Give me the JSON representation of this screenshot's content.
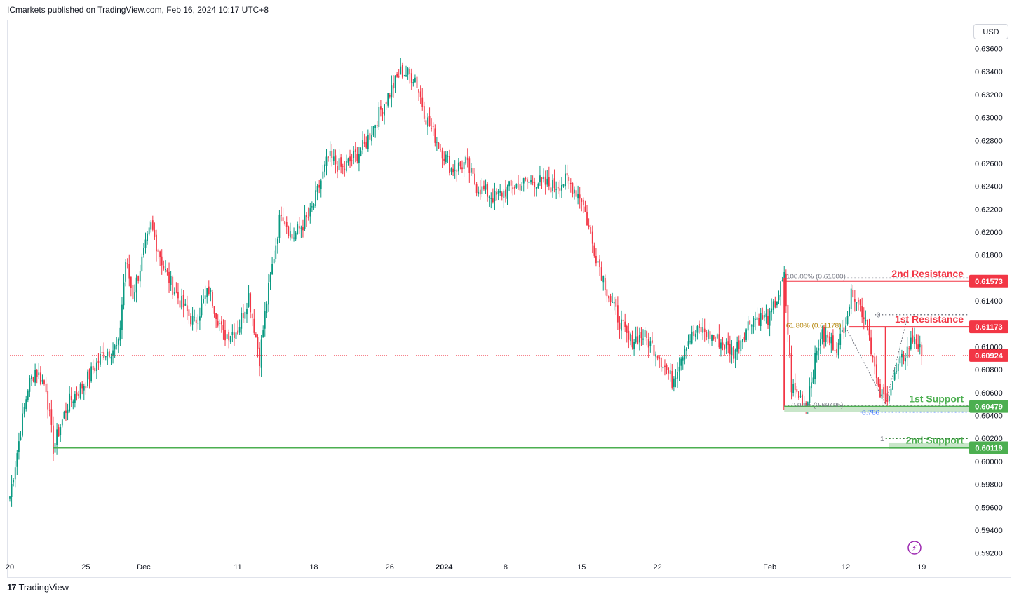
{
  "header": {
    "attribution": "ICmarkets published on TradingView.com, Feb 16, 2024 10:17 UTC+8"
  },
  "toolbar": {
    "currency_label": "USD"
  },
  "footer": {
    "brand_label": "TradingView",
    "logo_icon": "tradingview-logo-icon"
  },
  "colors": {
    "up": "#089981",
    "down": "#f23645",
    "resistance": "#f23645",
    "support": "#4caf50",
    "support_zone": "#c8e6c9",
    "current_price": "#f23645",
    "fib_text": "#b5860b",
    "fib_786": "#2962ff",
    "grid_text": "#131722"
  },
  "chart_data": {
    "type": "candlestick",
    "instrument_currency": "USD",
    "ylim": [
      0.591,
      0.6375
    ],
    "y_ticks": [
      "0.63600",
      "0.63400",
      "0.63200",
      "0.63000",
      "0.62800",
      "0.62600",
      "0.62400",
      "0.62200",
      "0.62000",
      "0.61800",
      "0.61400",
      "0.61000",
      "0.60800",
      "0.60600",
      "0.60400",
      "0.60200",
      "0.60000",
      "0.59800",
      "0.59600",
      "0.59400",
      "0.59200"
    ],
    "x_ticks": [
      {
        "label": "20",
        "bar": 0
      },
      {
        "label": "25",
        "bar": 42
      },
      {
        "label": "Dec",
        "bar": 74
      },
      {
        "label": "11",
        "bar": 126
      },
      {
        "label": "18",
        "bar": 168
      },
      {
        "label": "26",
        "bar": 210
      },
      {
        "label": "2024",
        "bar": 240,
        "bold": true
      },
      {
        "label": "8",
        "bar": 274
      },
      {
        "label": "15",
        "bar": 316
      },
      {
        "label": "22",
        "bar": 358
      },
      {
        "label": "Feb",
        "bar": 420
      },
      {
        "label": "12",
        "bar": 462
      },
      {
        "label": "19",
        "bar": 504
      }
    ],
    "anchors": [
      [
        0,
        0.597
      ],
      [
        10,
        0.6065
      ],
      [
        14,
        0.608
      ],
      [
        20,
        0.6065
      ],
      [
        24,
        0.6012
      ],
      [
        32,
        0.605
      ],
      [
        42,
        0.607
      ],
      [
        52,
        0.6095
      ],
      [
        60,
        0.61
      ],
      [
        64,
        0.6175
      ],
      [
        68,
        0.6145
      ],
      [
        78,
        0.6205
      ],
      [
        86,
        0.6165
      ],
      [
        94,
        0.614
      ],
      [
        102,
        0.612
      ],
      [
        110,
        0.615
      ],
      [
        118,
        0.611
      ],
      [
        126,
        0.6115
      ],
      [
        132,
        0.6145
      ],
      [
        138,
        0.609
      ],
      [
        142,
        0.614
      ],
      [
        150,
        0.622
      ],
      [
        156,
        0.6195
      ],
      [
        166,
        0.6215
      ],
      [
        176,
        0.6265
      ],
      [
        184,
        0.6255
      ],
      [
        196,
        0.6275
      ],
      [
        206,
        0.631
      ],
      [
        216,
        0.634
      ],
      [
        224,
        0.6335
      ],
      [
        230,
        0.63
      ],
      [
        236,
        0.628
      ],
      [
        244,
        0.6255
      ],
      [
        252,
        0.626
      ],
      [
        258,
        0.624
      ],
      [
        268,
        0.623
      ],
      [
        278,
        0.624
      ],
      [
        290,
        0.6245
      ],
      [
        300,
        0.624
      ],
      [
        308,
        0.6245
      ],
      [
        316,
        0.623
      ],
      [
        322,
        0.619
      ],
      [
        332,
        0.614
      ],
      [
        342,
        0.6105
      ],
      [
        350,
        0.611
      ],
      [
        358,
        0.6095
      ],
      [
        366,
        0.607
      ],
      [
        374,
        0.6105
      ],
      [
        382,
        0.6115
      ],
      [
        392,
        0.6105
      ],
      [
        400,
        0.6095
      ],
      [
        410,
        0.6125
      ],
      [
        420,
        0.6125
      ],
      [
        428,
        0.616
      ],
      [
        432,
        0.6065
      ],
      [
        440,
        0.605
      ],
      [
        448,
        0.611
      ],
      [
        458,
        0.61
      ],
      [
        466,
        0.615
      ],
      [
        474,
        0.612
      ],
      [
        480,
        0.606
      ],
      [
        484,
        0.6055
      ],
      [
        492,
        0.6085
      ],
      [
        500,
        0.611
      ],
      [
        504,
        0.6092
      ]
    ],
    "current_price": "0.60924",
    "levels": [
      {
        "name": "2nd Resistance",
        "value": "0.61573",
        "kind": "resistance"
      },
      {
        "name": "1st Resistance",
        "value": "0.61173",
        "kind": "resistance"
      },
      {
        "name": "1st Support",
        "value": "0.60479",
        "kind": "support"
      },
      {
        "name": "2nd Support",
        "value": "0.60119",
        "kind": "support"
      }
    ],
    "fib_labels": {
      "top": "100.00% (0.61600)",
      "mid": "61.80% (0.61178)",
      "bottom": "0.00% (0.60495)",
      "ratio_786": "0.786",
      "ratio_1": "1",
      "ratio_0": "0"
    }
  }
}
